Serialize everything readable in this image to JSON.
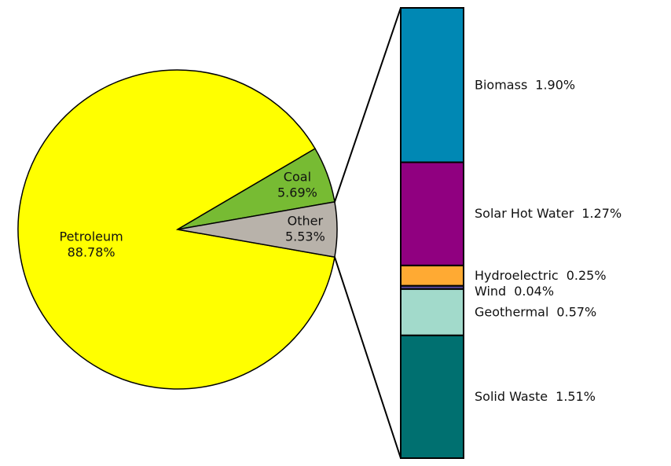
{
  "chart_data": [
    {
      "type": "pie",
      "categories": [
        "Petroleum",
        "Coal",
        "Other"
      ],
      "values": [
        88.78,
        5.69,
        5.53
      ],
      "value_labels": [
        "88.78%",
        "5.69%",
        "5.53%"
      ],
      "colors": [
        "#ffff00",
        "#77bb33",
        "#b8b2aa"
      ]
    },
    {
      "type": "stacked-bar",
      "categories": [
        "Biomass",
        "Solar Hot Water",
        "Hydroelectric",
        "Wind",
        "Geothermal",
        "Solid Waste"
      ],
      "values": [
        1.9,
        1.27,
        0.25,
        0.04,
        0.57,
        1.51
      ],
      "value_labels": [
        "1.90%",
        "1.27%",
        "0.25%",
        "0.04%",
        "0.57%",
        "1.51%"
      ],
      "colors": [
        "#0088b4",
        "#900080",
        "#ffaa33",
        "#5a4a9a",
        "#a2dacb",
        "#007070"
      ]
    }
  ]
}
